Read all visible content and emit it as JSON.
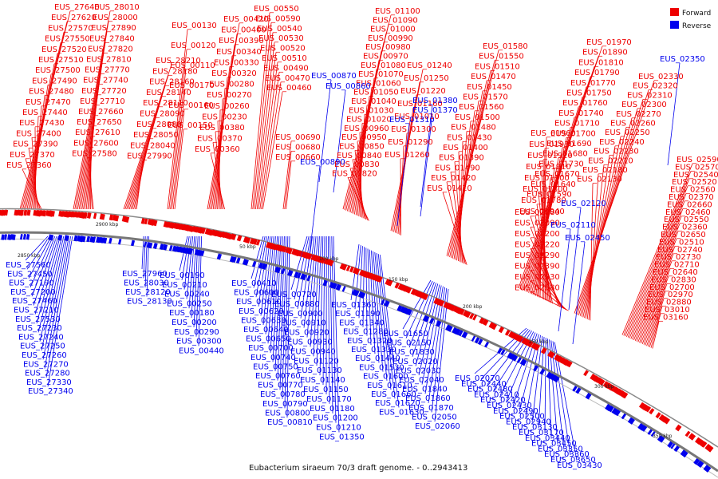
{
  "caption": "Eubacterium siraeum 70/3 draft genome. - 0..2943413",
  "legend": {
    "forward": "Forward",
    "reverse": "Reverse",
    "forward_color": "#ee0000",
    "reverse_color": "#0000ee"
  },
  "ticks": [
    "2850 kbp",
    "2900 kbp",
    "50 kbp",
    "100 kbp",
    "150 kbp",
    "200 kbp",
    "250 kbp",
    "300 kbp",
    "350 kbp"
  ],
  "forward_labels": [
    "EUS_27640",
    "EUS_27620",
    "EUS_27570",
    "EUS_27550",
    "EUS_27520",
    "EUS_27510",
    "EUS_27500",
    "EUS_27490",
    "EUS_27480",
    "EUS_27470",
    "EUS_27440",
    "EUS_27430",
    "EUS_27400",
    "EUS_27390",
    "EUS_27370",
    "EUS_27360",
    "EUS_28010",
    "EUS_28000",
    "EUS_27890",
    "EUS_27840",
    "EUS_27820",
    "EUS_27810",
    "EUS_27770",
    "EUS_27740",
    "EUS_27720",
    "EUS_27710",
    "EUS_27660",
    "EUS_27650",
    "EUS_27610",
    "EUS_27600",
    "EUS_27580",
    "EUS_28210",
    "EUS_28180",
    "EUS_28160",
    "EUS_28140",
    "EUS_28110",
    "EUS_28090",
    "EUS_28080",
    "EUS_28050",
    "EUS_28040",
    "EUS_27990",
    "EUS_00130",
    "EUS_00120",
    "EUS_00110",
    "EUS_00170",
    "EUS_00160",
    "EUS_00150",
    "EUS_00420",
    "EUS_00400",
    "EUS_00390",
    "EUS_00340",
    "EUS_00330",
    "EUS_00320",
    "EUS_00280",
    "EUS_00270",
    "EUS_00260",
    "EUS_00230",
    "EUS_00380",
    "EUS_00370",
    "EUS_00360",
    "EUS_00550",
    "EUS_00590",
    "EUS_00540",
    "EUS_00530",
    "EUS_00520",
    "EUS_00510",
    "EUS_00490",
    "EUS_00470",
    "EUS_00460",
    "EUS_00690",
    "EUS_00680",
    "EUS_00660",
    "EUS_01100",
    "EUS_01090",
    "EUS_01000",
    "EUS_00990",
    "EUS_00980",
    "EUS_00970",
    "EUS_01080",
    "EUS_01070",
    "EUS_01060",
    "EUS_01050",
    "EUS_01040",
    "EUS_01030",
    "EUS_01020",
    "EUS_00960",
    "EUS_00950",
    "EUS_00850",
    "EUS_00840",
    "EUS_00830",
    "EUS_00820",
    "EUS_01240",
    "EUS_01250",
    "EUS_01220",
    "EUS_01160",
    "EUS_01010",
    "EUS_01300",
    "EUS_01290",
    "EUS_01260",
    "EUS_01580",
    "EUS_01550",
    "EUS_01510",
    "EUS_01470",
    "EUS_01450",
    "EUS_01570",
    "EUS_01560",
    "EUS_01500",
    "EUS_01480",
    "EUS_01430",
    "EUS_01400",
    "EUS_01390",
    "EUS_01490",
    "EUS_01420",
    "EUS_01410",
    "EUS_01970",
    "EUS_01890",
    "EUS_01810",
    "EUS_01790",
    "EUS_01770",
    "EUS_01750",
    "EUS_01760",
    "EUS_01740",
    "EUS_01710",
    "EUS_01700",
    "EUS_01690",
    "EUS_01680",
    "EUS_01730",
    "EUS_01670",
    "EUS_01640",
    "EUS_01590",
    "EUS_01960",
    "EUS_01930",
    "EUS_01920",
    "EUS_01910",
    "EUS_01900",
    "EUS_01800",
    "EUS_01780",
    "EUS_01940",
    "EUS_02080",
    "EUS_02090",
    "EUS_02200",
    "EUS_02220",
    "EUS_02290",
    "EUS_02390",
    "EUS_02530",
    "EUS_02580",
    "EUS_02330",
    "EUS_02320",
    "EUS_02310",
    "EUS_02300",
    "EUS_02270",
    "EUS_02260",
    "EUS_02250",
    "EUS_02240",
    "EUS_02230",
    "EUS_02210",
    "EUS_02180",
    "EUS_02130",
    "EUS_02590",
    "EUS_02570",
    "EUS_02540",
    "EUS_02520",
    "EUS_02560",
    "EUS_02370",
    "EUS_02660",
    "EUS_02460",
    "EUS_02550",
    "EUS_02360",
    "EUS_02650",
    "EUS_02510",
    "EUS_02740",
    "EUS_02730",
    "EUS_02710",
    "EUS_02640",
    "EUS_02830",
    "EUS_02700",
    "EUS_02970",
    "EUS_02880",
    "EUS_03010",
    "EUS_03160"
  ],
  "reverse_labels": [
    "EUS_02350",
    "EUS_00870",
    "EUS_00860",
    "EUS_01380",
    "EUS_01370",
    "EUS_01310",
    "EUS_00890",
    "EUS_02120",
    "EUS_02110",
    "EUS_02450",
    "EUS_27560",
    "EUS_27450",
    "EUS_27190",
    "EUS_27200",
    "EUS_27460",
    "EUS_27210",
    "EUS_27530",
    "EUS_27230",
    "EUS_27240",
    "EUS_27250",
    "EUS_27260",
    "EUS_27270",
    "EUS_27280",
    "EUS_27330",
    "EUS_27340",
    "EUS_27960",
    "EUS_28030",
    "EUS_28120",
    "EUS_28130",
    "EUS_00190",
    "EUS_00210",
    "EUS_00240",
    "EUS_00250",
    "EUS_00180",
    "EUS_00200",
    "EUS_00290",
    "EUS_00300",
    "EUS_00440",
    "EUS_00410",
    "EUS_00600",
    "EUS_00610",
    "EUS_00620",
    "EUS_00630",
    "EUS_00640",
    "EUS_00650",
    "EUS_00700",
    "EUS_00740",
    "EUS_00750",
    "EUS_00760",
    "EUS_00770",
    "EUS_00780",
    "EUS_00790",
    "EUS_00800",
    "EUS_00810",
    "EUS_00720",
    "EUS_00880",
    "EUS_00900",
    "EUS_00910",
    "EUS_00920",
    "EUS_00930",
    "EUS_00940",
    "EUS_01120",
    "EUS_01130",
    "EUS_01140",
    "EUS_01150",
    "EUS_01170",
    "EUS_01180",
    "EUS_01200",
    "EUS_01210",
    "EUS_01350",
    "EUS_01360",
    "EUS_01190",
    "EUS_01340",
    "EUS_01280",
    "EUS_01320",
    "EUS_01330",
    "EUS_01440",
    "EUS_01530",
    "EUS_01600",
    "EUS_01610",
    "EUS_01660",
    "EUS_01620",
    "EUS_01630",
    "EUS_01650",
    "EUS_02150",
    "EUS_01830",
    "EUS_02020",
    "EUS_02030",
    "EUS_02040",
    "EUS_01840",
    "EUS_01860",
    "EUS_01870",
    "EUS_02050",
    "EUS_02060",
    "EUS_02070",
    "EUS_02440",
    "EUS_02480",
    "EUS_02410",
    "EUS_02420",
    "EUS_02430",
    "EUS_02490",
    "EUS_02500",
    "EUS_02940",
    "EUS_03130",
    "EUS_03170",
    "EUS_03440",
    "EUS_03450",
    "EUS_03350",
    "EUS_03360",
    "EUS_03650",
    "EUS_03430",
    "EUS_03950"
  ]
}
